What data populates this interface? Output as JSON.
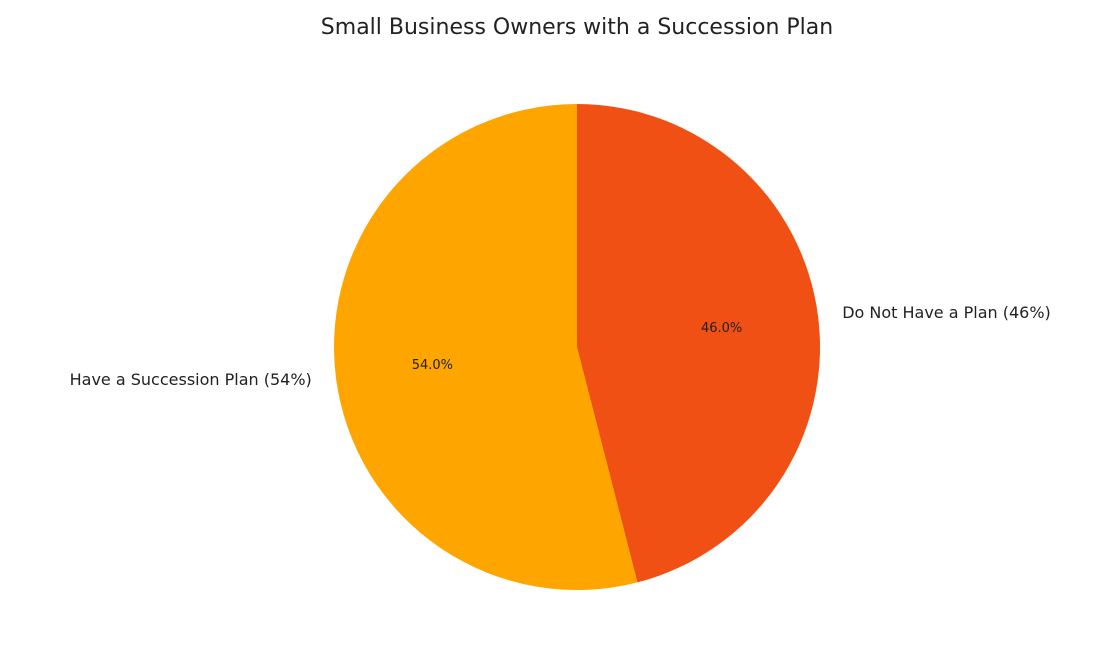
{
  "chart_data": {
    "type": "pie",
    "title": "Small Business Owners with a Succession Plan",
    "categories": [
      "Have a Succession Plan (54%)",
      "Do Not Have a Plan (46%)"
    ],
    "values": [
      54,
      46
    ],
    "value_labels": [
      "54.0%",
      "46.0%"
    ],
    "colors": [
      "#ffa500",
      "#f05014"
    ]
  }
}
